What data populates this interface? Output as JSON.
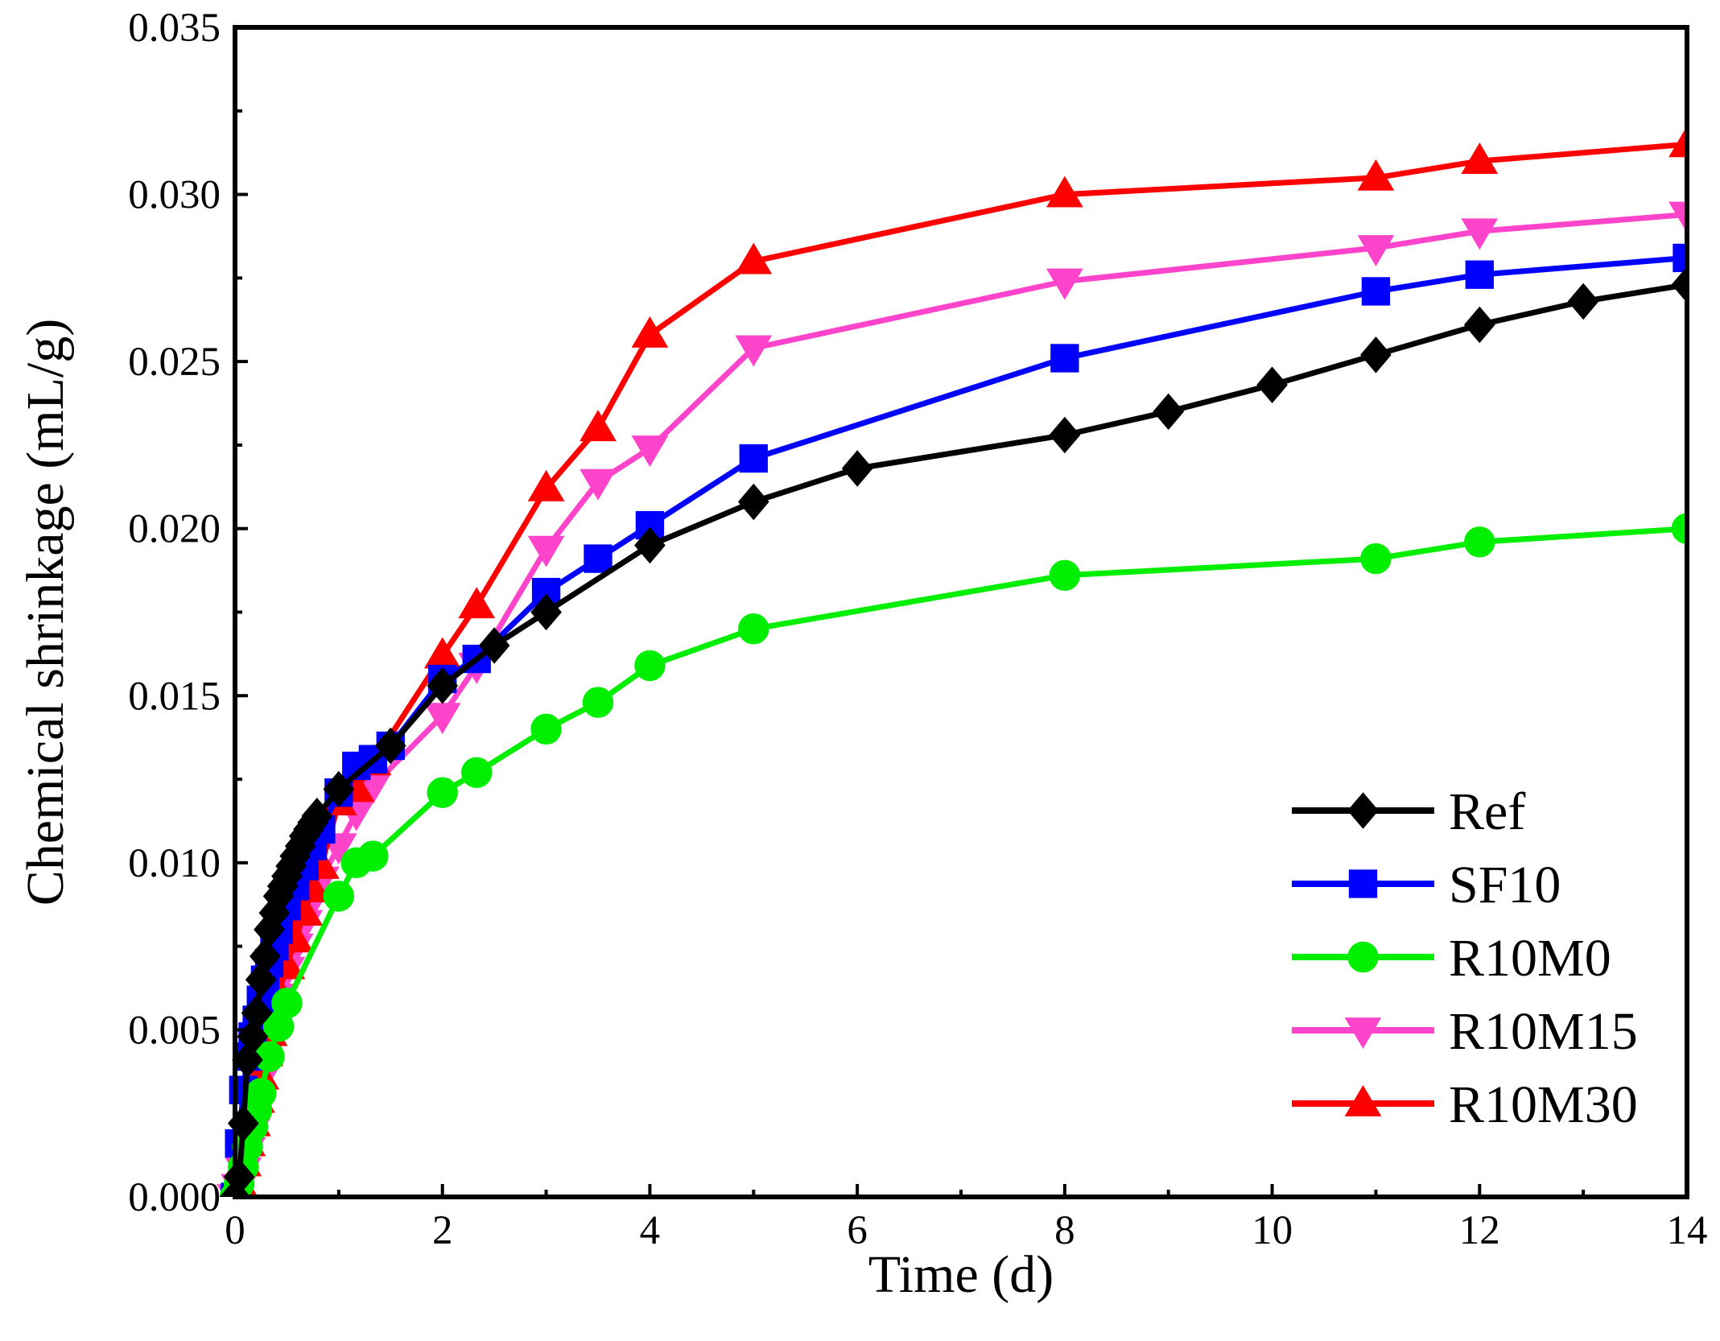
{
  "chart_data": {
    "type": "line",
    "title": "",
    "xlabel": "Time (d)",
    "ylabel": "Chemical shrinkage (mL/g)",
    "xlim": [
      0,
      14
    ],
    "ylim": [
      0,
      0.035
    ],
    "xticks": [
      "0",
      "2",
      "4",
      "6",
      "8",
      "10",
      "12",
      "14"
    ],
    "yticks": [
      "0.000",
      "0.005",
      "0.010",
      "0.015",
      "0.020",
      "0.025",
      "0.030",
      "0.035"
    ],
    "grid": false,
    "legend_position": "bottom-right",
    "series": [
      {
        "name": "Ref",
        "color": "#000000",
        "marker": "diamond",
        "x": [
          0,
          0.04,
          0.08,
          0.12,
          0.17,
          0.21,
          0.25,
          0.29,
          0.33,
          0.38,
          0.42,
          0.46,
          0.5,
          0.54,
          0.58,
          0.63,
          0.67,
          0.71,
          0.75,
          0.79,
          1.0,
          1.5,
          2.0,
          2.5,
          3.0,
          4.0,
          5.0,
          6.0,
          8.0,
          9.0,
          10.0,
          11.0,
          12.0,
          13.0,
          14.0
        ],
        "y": [
          0.0,
          0.0006,
          0.0022,
          0.0041,
          0.0048,
          0.0055,
          0.0065,
          0.0072,
          0.008,
          0.0085,
          0.009,
          0.0093,
          0.0096,
          0.0099,
          0.0102,
          0.0105,
          0.0108,
          0.011,
          0.0112,
          0.0114,
          0.0122,
          0.0135,
          0.0153,
          0.0165,
          0.0175,
          0.0195,
          0.0208,
          0.0218,
          0.0228,
          0.0235,
          0.0243,
          0.0252,
          0.0261,
          0.0268,
          0.0273
        ]
      },
      {
        "name": "SF10",
        "color": "#0000ff",
        "marker": "square",
        "x": [
          0,
          0.04,
          0.08,
          0.12,
          0.17,
          0.21,
          0.25,
          0.29,
          0.33,
          0.38,
          0.42,
          0.5,
          0.58,
          0.67,
          0.75,
          0.83,
          1.0,
          1.17,
          1.33,
          1.5,
          2.0,
          2.33,
          3.0,
          3.5,
          4.0,
          5.0,
          8.0,
          11.0,
          12.0,
          14.0
        ],
        "y": [
          0.0,
          0.0016,
          0.0032,
          0.0042,
          0.0048,
          0.0053,
          0.0059,
          0.0065,
          0.007,
          0.0075,
          0.008,
          0.0087,
          0.0093,
          0.0099,
          0.0105,
          0.011,
          0.0121,
          0.0129,
          0.0131,
          0.0135,
          0.0155,
          0.0161,
          0.0181,
          0.0191,
          0.0201,
          0.0221,
          0.0251,
          0.0271,
          0.0276,
          0.0281
        ]
      },
      {
        "name": "R10M0",
        "color": "#00ee00",
        "marker": "circle",
        "x": [
          0,
          0.04,
          0.08,
          0.12,
          0.17,
          0.21,
          0.25,
          0.33,
          0.42,
          0.5,
          1.0,
          1.17,
          1.33,
          2.0,
          2.33,
          3.0,
          3.5,
          4.0,
          5.0,
          8.0,
          11.0,
          12.0,
          14.0
        ],
        "y": [
          0.0,
          0.0004,
          0.0009,
          0.0015,
          0.0021,
          0.0026,
          0.0031,
          0.0042,
          0.0051,
          0.0058,
          0.009,
          0.01,
          0.0102,
          0.0121,
          0.0127,
          0.014,
          0.0148,
          0.0159,
          0.017,
          0.0186,
          0.0191,
          0.0196,
          0.02
        ]
      },
      {
        "name": "R10M15",
        "color": "#ff44cc",
        "marker": "triangle-down",
        "x": [
          0,
          0.04,
          0.08,
          0.12,
          0.17,
          0.21,
          0.25,
          0.29,
          0.33,
          0.38,
          0.42,
          0.5,
          0.58,
          0.67,
          0.75,
          0.83,
          1.0,
          1.17,
          1.33,
          2.0,
          2.33,
          3.0,
          3.5,
          4.0,
          5.0,
          8.0,
          11.0,
          12.0,
          14.0
        ],
        "y": [
          0.0,
          0.0003,
          0.0008,
          0.0014,
          0.002,
          0.0027,
          0.0035,
          0.0042,
          0.0048,
          0.0054,
          0.006,
          0.0068,
          0.0075,
          0.0082,
          0.0089,
          0.0095,
          0.0105,
          0.0115,
          0.0123,
          0.0144,
          0.0159,
          0.0194,
          0.0214,
          0.0224,
          0.0254,
          0.0274,
          0.0284,
          0.0289,
          0.0294
        ]
      },
      {
        "name": "R10M30",
        "color": "#ff0000",
        "marker": "triangle-up",
        "x": [
          0,
          0.04,
          0.08,
          0.12,
          0.17,
          0.21,
          0.25,
          0.29,
          0.33,
          0.38,
          0.42,
          0.5,
          0.58,
          0.67,
          0.75,
          0.83,
          1.0,
          1.17,
          1.33,
          2.0,
          2.33,
          3.0,
          3.5,
          4.0,
          5.0,
          8.0,
          11.0,
          12.0,
          14.0
        ],
        "y": [
          0.0,
          0.0004,
          0.001,
          0.0016,
          0.0022,
          0.0029,
          0.0036,
          0.0043,
          0.0049,
          0.0055,
          0.0061,
          0.0069,
          0.0077,
          0.0085,
          0.0092,
          0.0099,
          0.0118,
          0.0122,
          0.013,
          0.0162,
          0.0177,
          0.0212,
          0.023,
          0.0258,
          0.028,
          0.03,
          0.0305,
          0.031,
          0.0315
        ]
      }
    ]
  }
}
